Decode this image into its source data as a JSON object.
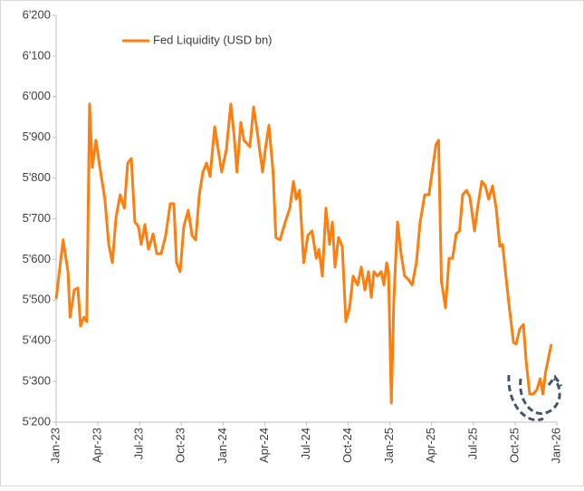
{
  "chart_data": {
    "type": "line",
    "x": [
      0,
      0.5,
      0.85,
      1.0,
      1.3,
      1.56,
      1.76,
      2.0,
      2.2,
      2.4,
      2.6,
      2.86,
      3.1,
      3.5,
      3.78,
      4.04,
      4.3,
      4.6,
      4.9,
      5.14,
      5.4,
      5.66,
      5.92,
      6.12,
      6.38,
      6.64,
      6.97,
      7.23,
      7.55,
      7.88,
      8.2,
      8.46,
      8.66,
      8.92,
      9.18,
      9.5,
      9.77,
      10.03,
      10.29,
      10.55,
      10.81,
      11.07,
      11.4,
      11.65,
      11.9,
      12.24,
      12.56,
      12.8,
      13.0,
      13.28,
      13.5,
      13.93,
      14.2,
      14.5,
      14.84,
      15.04,
      15.3,
      15.6,
      15.8,
      16.1,
      16.47,
      16.8,
      17.06,
      17.25,
      17.5,
      17.8,
      18.1,
      18.4,
      18.7,
      18.9,
      19.14,
      19.4,
      19.66,
      19.86,
      20.05,
      20.3,
      20.57,
      20.83,
      21.1,
      21.35,
      21.68,
      21.94,
      22.2,
      22.46,
      22.66,
      22.85,
      23.1,
      23.37,
      23.57,
      23.76,
      23.9,
      24.1,
      24.28,
      24.54,
      24.8,
      25.06,
      25.3,
      25.6,
      25.9,
      26.17,
      26.5,
      26.8,
      27.08,
      27.3,
      27.5,
      27.7,
      27.99,
      28.25,
      28.5,
      28.77,
      29.0,
      29.23,
      29.5,
      29.75,
      30.08,
      30.3,
      30.6,
      30.86,
      31.1,
      31.38,
      31.64,
      31.9,
      32.1,
      32.3,
      32.55,
      32.88,
      33.07,
      33.33,
      33.6,
      33.8,
      34.05,
      34.3,
      34.57,
      34.8,
      35.0,
      35.2,
      35.4,
      35.6
    ],
    "series": [
      {
        "name": "Fed Liquidity (USD bn)",
        "color": "#ff7f0e",
        "values": [
          5503,
          5648,
          5570,
          5458,
          5525,
          5530,
          5436,
          5458,
          5447,
          5982,
          5826,
          5893,
          5837,
          5748,
          5637,
          5592,
          5703,
          5759,
          5726,
          5837,
          5848,
          5692,
          5681,
          5637,
          5686,
          5625,
          5663,
          5614,
          5614,
          5659,
          5737,
          5737,
          5592,
          5570,
          5681,
          5721,
          5659,
          5648,
          5759,
          5815,
          5837,
          5804,
          5926,
          5870,
          5815,
          5870,
          5982,
          5904,
          5815,
          5937,
          5893,
          5877,
          5975,
          5904,
          5815,
          5870,
          5930,
          5815,
          5654,
          5648,
          5692,
          5726,
          5792,
          5748,
          5770,
          5592,
          5659,
          5670,
          5603,
          5625,
          5559,
          5726,
          5637,
          5692,
          5581,
          5654,
          5632,
          5447,
          5481,
          5559,
          5537,
          5581,
          5525,
          5570,
          5507,
          5570,
          5559,
          5570,
          5537,
          5592,
          5570,
          5247,
          5503,
          5692,
          5614,
          5559,
          5552,
          5537,
          5592,
          5692,
          5759,
          5759,
          5826,
          5882,
          5893,
          5547,
          5481,
          5603,
          5603,
          5663,
          5670,
          5759,
          5770,
          5753,
          5670,
          5726,
          5792,
          5781,
          5748,
          5781,
          5726,
          5632,
          5637,
          5570,
          5492,
          5396,
          5392,
          5429,
          5440,
          5347,
          5269,
          5269,
          5280,
          5307,
          5269,
          5325,
          5358,
          5392
        ]
      }
    ],
    "xlim": [
      0,
      36
    ],
    "xticks": [
      {
        "value": 0,
        "label": "Jan-23"
      },
      {
        "value": 3,
        "label": "Apr-23"
      },
      {
        "value": 6,
        "label": "Jul-23"
      },
      {
        "value": 9,
        "label": "Oct-23"
      },
      {
        "value": 12,
        "label": "Jan-24"
      },
      {
        "value": 15,
        "label": "Apr-24"
      },
      {
        "value": 18,
        "label": "Jul-24"
      },
      {
        "value": 21,
        "label": "Oct-24"
      },
      {
        "value": 24,
        "label": "Jan-25"
      },
      {
        "value": 27,
        "label": "Apr-25"
      },
      {
        "value": 30,
        "label": "Jul-25"
      },
      {
        "value": 33,
        "label": "Oct-25"
      },
      {
        "value": 36,
        "label": "Jan-26"
      }
    ],
    "ylim": [
      5200,
      6200
    ],
    "yticks": [
      {
        "value": 5200,
        "label": "5'200"
      },
      {
        "value": 5300,
        "label": "5'300"
      },
      {
        "value": 5400,
        "label": "5'400"
      },
      {
        "value": 5500,
        "label": "5'500"
      },
      {
        "value": 5600,
        "label": "5'600"
      },
      {
        "value": 5700,
        "label": "5'700"
      },
      {
        "value": 5800,
        "label": "5'800"
      },
      {
        "value": 5900,
        "label": "5'900"
      },
      {
        "value": 6000,
        "label": "6'000"
      },
      {
        "value": 6100,
        "label": "6'100"
      },
      {
        "value": 6200,
        "label": "6'200"
      }
    ],
    "grid": false,
    "legend": "top-left"
  }
}
